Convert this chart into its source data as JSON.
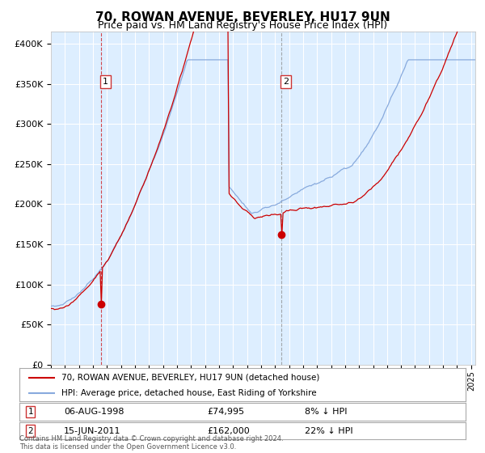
{
  "title": "70, ROWAN AVENUE, BEVERLEY, HU17 9UN",
  "subtitle": "Price paid vs. HM Land Registry's House Price Index (HPI)",
  "title_fontsize": 11,
  "subtitle_fontsize": 9,
  "background_color": "#ffffff",
  "plot_bg_color": "#ddeeff",
  "grid_color": "#ffffff",
  "red_line_color": "#cc0000",
  "blue_line_color": "#88aadd",
  "sale1_year": 1998.58,
  "sale1_price": 74995,
  "sale1_label": "1",
  "sale1_date": "06-AUG-1998",
  "sale1_hpi_diff": "8% ↓ HPI",
  "sale2_year": 2011.45,
  "sale2_price": 162000,
  "sale2_label": "2",
  "sale2_date": "15-JUN-2011",
  "sale2_hpi_diff": "22% ↓ HPI",
  "yticks": [
    0,
    50000,
    100000,
    150000,
    200000,
    250000,
    300000,
    350000,
    400000
  ],
  "ylim": [
    0,
    415000
  ],
  "xlim_start": 1995.0,
  "xlim_end": 2025.3,
  "legend1_label": "70, ROWAN AVENUE, BEVERLEY, HU17 9UN (detached house)",
  "legend2_label": "HPI: Average price, detached house, East Riding of Yorkshire",
  "footer": "Contains HM Land Registry data © Crown copyright and database right 2024.\nThis data is licensed under the Open Government Licence v3.0."
}
